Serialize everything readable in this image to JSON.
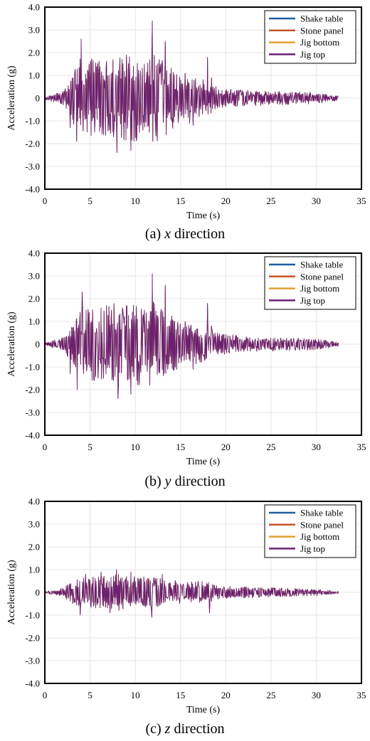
{
  "colors": {
    "shake_table": "#1f5fa0",
    "stone_panel": "#c8512a",
    "jig_bottom": "#e0a030",
    "jig_top": "#6b2070",
    "grid": "#e4e4e4"
  },
  "chart_data": [
    {
      "type": "line",
      "caption_prefix": "(a) ",
      "caption_dir": "x",
      "caption_suffix": " direction",
      "xlabel": "Time (s)",
      "ylabel": "Acceleration (g)",
      "xlim": [
        0,
        35
      ],
      "ylim": [
        -4.0,
        4.0
      ],
      "xticks": [
        "0",
        "5",
        "10",
        "15",
        "20",
        "25",
        "30",
        "35"
      ],
      "yticks": [
        "4.0",
        "3.0",
        "2.0",
        "1.0",
        "0",
        "-1.0",
        "-2.0",
        "-3.0",
        "-4.0"
      ],
      "grid": true,
      "legend_position": "top-right",
      "duration": 32.5,
      "envelope": [
        [
          0,
          0.05
        ],
        [
          2,
          0.3
        ],
        [
          3,
          1.0
        ],
        [
          4,
          1.8
        ],
        [
          6,
          1.7
        ],
        [
          8,
          2.0
        ],
        [
          9,
          1.9
        ],
        [
          12,
          2.0
        ],
        [
          13.5,
          1.6
        ],
        [
          15,
          1.0
        ],
        [
          18,
          0.8
        ],
        [
          19,
          0.5
        ],
        [
          22,
          0.35
        ],
        [
          26,
          0.3
        ],
        [
          30,
          0.25
        ],
        [
          32.5,
          0.1
        ]
      ],
      "peaks": [
        [
          2.8,
          -1.3
        ],
        [
          3.5,
          -1.9
        ],
        [
          4.0,
          2.6
        ],
        [
          4.9,
          1.5
        ],
        [
          5.5,
          -1.5
        ],
        [
          6.5,
          -1.6
        ],
        [
          7.1,
          1.0
        ],
        [
          7.6,
          -1.7
        ],
        [
          8.0,
          -2.4
        ],
        [
          8.5,
          1.7
        ],
        [
          9.0,
          1.9
        ],
        [
          9.5,
          -2.3
        ],
        [
          10.2,
          -1.7
        ],
        [
          11.0,
          1.5
        ],
        [
          11.9,
          3.4
        ],
        [
          12.8,
          1.5
        ],
        [
          13.3,
          2.5
        ],
        [
          14.0,
          -1.0
        ],
        [
          15.5,
          1.1
        ],
        [
          16.0,
          -1.1
        ],
        [
          16.4,
          -1.2
        ],
        [
          18.0,
          1.8
        ],
        [
          18.4,
          0.9
        ]
      ],
      "seed": 7,
      "series": [
        {
          "name": "Shake table"
        },
        {
          "name": "Stone panel"
        },
        {
          "name": "Jig bottom"
        },
        {
          "name": "Jig top"
        }
      ]
    },
    {
      "type": "line",
      "caption_prefix": "(b) ",
      "caption_dir": "y",
      "caption_suffix": " direction",
      "xlabel": "Time (s)",
      "ylabel": "Acceleration (g)",
      "xlim": [
        0,
        35
      ],
      "ylim": [
        -4.0,
        4.0
      ],
      "xticks": [
        "0",
        "5",
        "10",
        "15",
        "20",
        "25",
        "30",
        "35"
      ],
      "yticks": [
        "4.0",
        "3.0",
        "2.0",
        "1.0",
        "0",
        "-1.0",
        "-2.0",
        "-3.0",
        "-4.0"
      ],
      "grid": true,
      "legend_position": "top-right",
      "duration": 32.5,
      "envelope": [
        [
          0,
          0.05
        ],
        [
          2,
          0.3
        ],
        [
          3,
          1.0
        ],
        [
          4,
          1.7
        ],
        [
          6,
          1.6
        ],
        [
          8,
          1.9
        ],
        [
          9,
          1.8
        ],
        [
          12,
          1.9
        ],
        [
          13.5,
          1.5
        ],
        [
          15,
          1.0
        ],
        [
          18,
          0.8
        ],
        [
          19,
          0.5
        ],
        [
          22,
          0.35
        ],
        [
          26,
          0.3
        ],
        [
          30,
          0.25
        ],
        [
          32.5,
          0.1
        ]
      ],
      "peaks": [
        [
          2.8,
          -1.3
        ],
        [
          3.6,
          -2.0
        ],
        [
          4.1,
          2.3
        ],
        [
          4.9,
          1.4
        ],
        [
          5.5,
          -1.4
        ],
        [
          6.5,
          -1.5
        ],
        [
          7.6,
          -1.6
        ],
        [
          8.1,
          -2.4
        ],
        [
          8.6,
          1.6
        ],
        [
          9.0,
          1.7
        ],
        [
          9.5,
          -2.2
        ],
        [
          10.2,
          -1.6
        ],
        [
          11.0,
          1.5
        ],
        [
          11.9,
          3.1
        ],
        [
          12.8,
          1.4
        ],
        [
          13.3,
          2.6
        ],
        [
          15.5,
          1.0
        ],
        [
          16.4,
          -1.1
        ],
        [
          18.0,
          1.8
        ],
        [
          18.4,
          0.8
        ]
      ],
      "seed": 19,
      "series": [
        {
          "name": "Shake table"
        },
        {
          "name": "Stone panel"
        },
        {
          "name": "Jig bottom"
        },
        {
          "name": "Jig top"
        }
      ]
    },
    {
      "type": "line",
      "caption_prefix": "(c) ",
      "caption_dir": "z",
      "caption_suffix": " direction",
      "xlabel": "Time (s)",
      "ylabel": "Acceleration (g)",
      "xlim": [
        0,
        35
      ],
      "ylim": [
        -4.0,
        4.0
      ],
      "xticks": [
        "0",
        "5",
        "10",
        "15",
        "20",
        "25",
        "30",
        "35"
      ],
      "yticks": [
        "4.0",
        "3.0",
        "2.0",
        "1.0",
        "0",
        "-1.0",
        "-2.0",
        "-3.0",
        "-4.0"
      ],
      "grid": true,
      "legend_position": "top-right",
      "duration": 32.5,
      "envelope": [
        [
          0,
          0.03
        ],
        [
          2,
          0.2
        ],
        [
          3,
          0.5
        ],
        [
          4,
          0.7
        ],
        [
          6,
          0.7
        ],
        [
          8,
          0.8
        ],
        [
          10,
          0.7
        ],
        [
          12,
          0.7
        ],
        [
          15,
          0.5
        ],
        [
          18,
          0.5
        ],
        [
          19,
          0.3
        ],
        [
          22,
          0.25
        ],
        [
          26,
          0.2
        ],
        [
          30,
          0.15
        ],
        [
          32.5,
          0.05
        ]
      ],
      "peaks": [
        [
          3.9,
          -1.0
        ],
        [
          4.5,
          0.8
        ],
        [
          6.2,
          0.9
        ],
        [
          7.2,
          -0.9
        ],
        [
          7.9,
          1.0
        ],
        [
          9.5,
          0.9
        ],
        [
          11.8,
          -1.1
        ],
        [
          13.0,
          0.8
        ],
        [
          18.2,
          -0.9
        ]
      ],
      "seed": 33,
      "series": [
        {
          "name": "Shake table"
        },
        {
          "name": "Stone panel"
        },
        {
          "name": "Jig bottom"
        },
        {
          "name": "Jig top"
        }
      ]
    }
  ]
}
